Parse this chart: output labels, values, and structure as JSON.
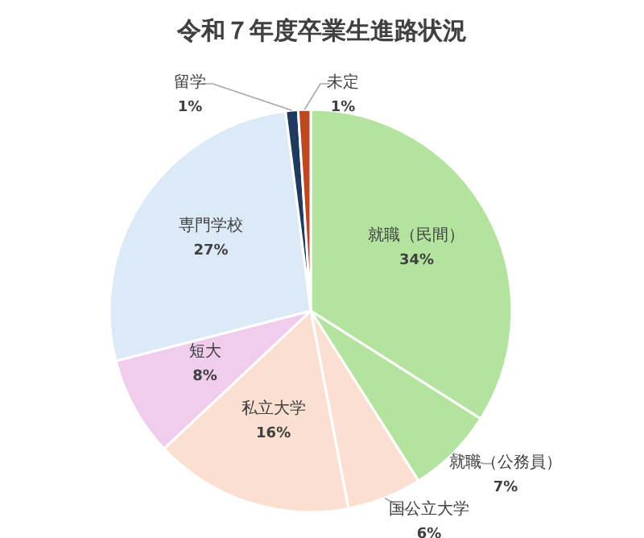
{
  "chart_data": {
    "type": "pie",
    "title": "令和７年度卒業生進路状況",
    "categories": [
      "就職（民間）",
      "就職（公務員）",
      "国公立大学",
      "私立大学",
      "短大",
      "専門学校",
      "留学",
      "未定"
    ],
    "values": [
      34,
      7,
      6,
      16,
      8,
      27,
      1,
      1
    ],
    "colors": [
      "#b4e3a0",
      "#b4e3a0",
      "#fbe0d2",
      "#fbe0d2",
      "#f0cdec",
      "#dce9f6",
      "#1f3a5c",
      "#c0461e"
    ],
    "value_labels": [
      "34%",
      "7%",
      "6%",
      "16%",
      "8%",
      "27%",
      "1%",
      "1%"
    ]
  }
}
